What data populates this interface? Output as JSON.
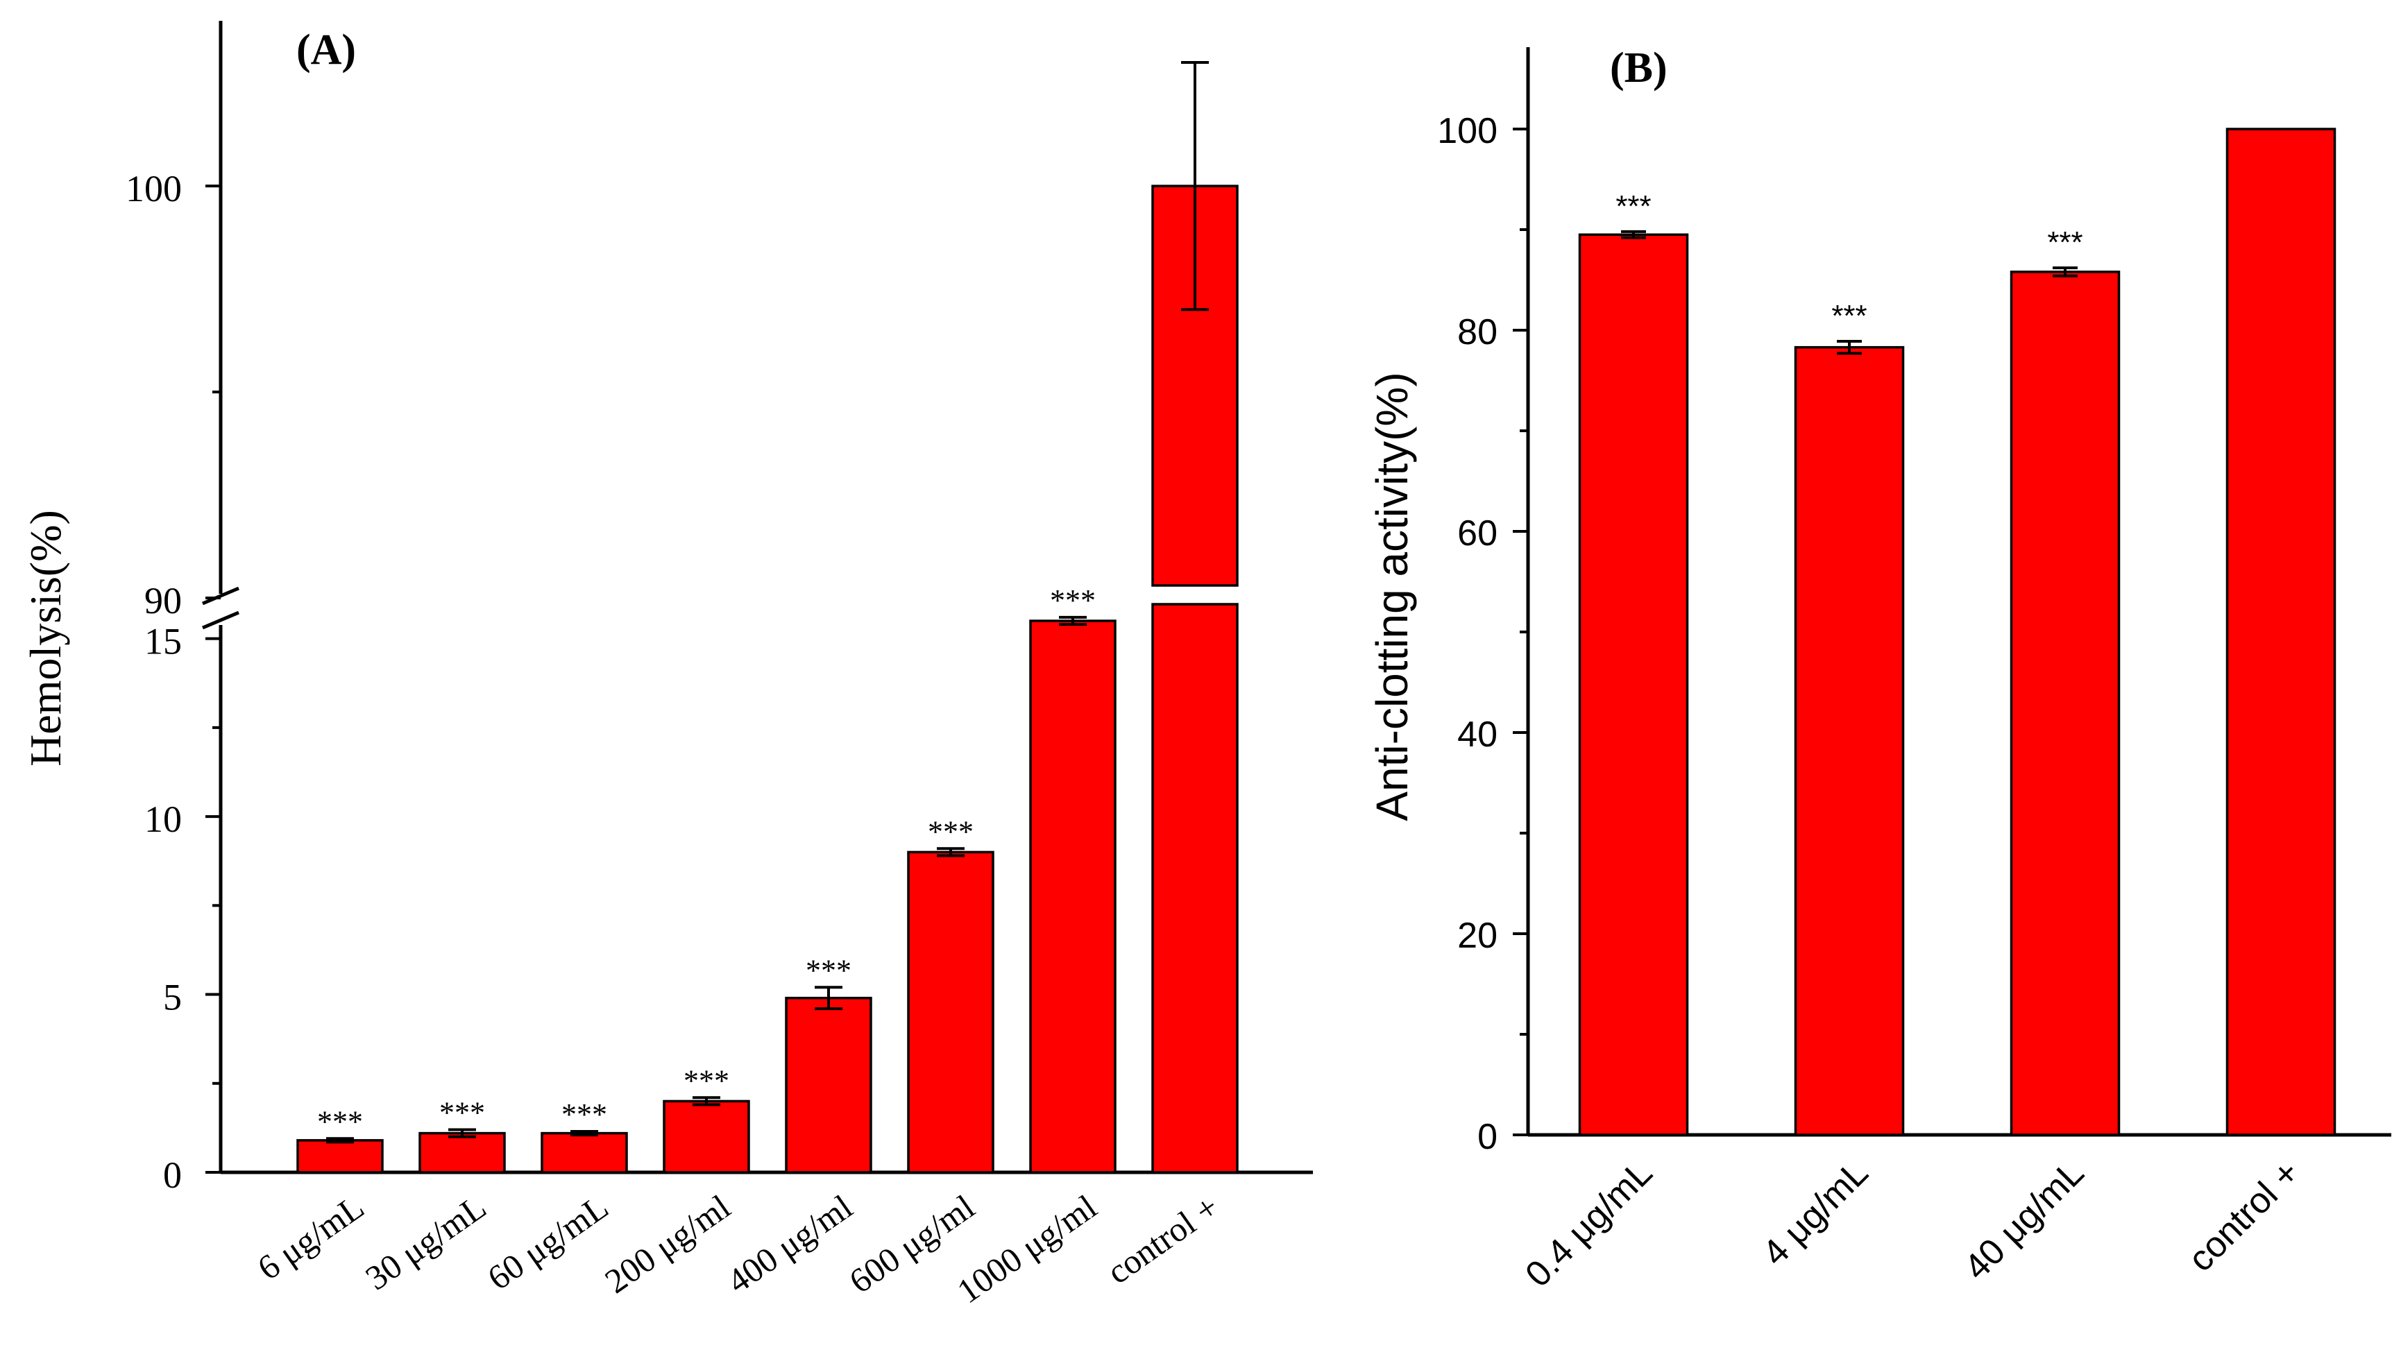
{
  "chart_data": [
    {
      "panel": "(A)",
      "type": "bar",
      "title": "",
      "xlabel": "",
      "ylabel": "Hemolysis(%)",
      "categories": [
        "6 μg/mL",
        "30 μg/mL",
        "60 μg/mL",
        "200 μg/ml",
        "400 μg/ml",
        "600 μg/ml",
        "1000 μg/ml",
        "control +"
      ],
      "values": [
        0.9,
        1.1,
        1.1,
        2.0,
        4.9,
        9.0,
        15.5,
        100
      ],
      "errors": [
        0.05,
        0.1,
        0.05,
        0.1,
        0.3,
        0.1,
        0.1,
        3.0
      ],
      "significance": [
        "***",
        "***",
        "***",
        "***",
        "***",
        "***",
        "***",
        ""
      ],
      "yaxis_break": {
        "lower_range": [
          0,
          15.5
        ],
        "upper_range": [
          90,
          103
        ],
        "lower_ticks": [
          0,
          5,
          10,
          15
        ],
        "upper_ticks": [
          90,
          100
        ],
        "lower_tick_labels": [
          "0",
          "5",
          "10",
          "15"
        ],
        "upper_tick_labels": [
          "90",
          "100"
        ]
      },
      "bar_color": "#ff0000",
      "grid": false
    },
    {
      "panel": "(B)",
      "type": "bar",
      "title": "",
      "xlabel": "",
      "ylabel": "Anti-clotting activity(%)",
      "categories": [
        "0.4 μg/mL",
        "4 μg/mL",
        "40 μg/mL",
        "control +"
      ],
      "values": [
        89.5,
        78.3,
        85.8,
        100
      ],
      "errors": [
        0.3,
        0.6,
        0.4,
        0
      ],
      "significance": [
        "***",
        "***",
        "***",
        ""
      ],
      "ylim": [
        0,
        107
      ],
      "yticks": [
        0,
        20,
        40,
        60,
        80,
        100
      ],
      "ytick_labels": [
        "0",
        "20",
        "40",
        "60",
        "80",
        "100"
      ],
      "bar_color": "#ff0000",
      "grid": false
    }
  ]
}
